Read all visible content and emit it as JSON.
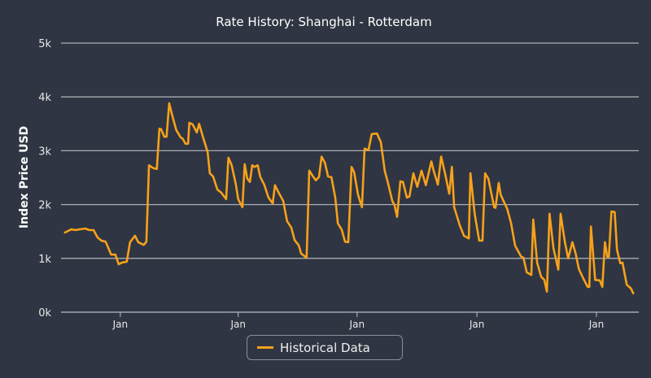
{
  "chart_data": {
    "type": "line",
    "title": "Rate History: Shanghai - Rotterdam",
    "xlabel": "",
    "ylabel": "Index Price USD",
    "x_unit": "days",
    "xlim": [
      -12,
      1762
    ],
    "ylim": [
      0,
      5000
    ],
    "yticks": [
      {
        "value": 0,
        "label": "0k"
      },
      {
        "value": 1000,
        "label": "1k"
      },
      {
        "value": 2000,
        "label": "2k"
      },
      {
        "value": 3000,
        "label": "3k"
      },
      {
        "value": 4000,
        "label": "4k"
      },
      {
        "value": 5000,
        "label": "5k"
      }
    ],
    "xticks": [
      {
        "value": 170,
        "label": "Jan"
      },
      {
        "value": 532,
        "label": "Jan"
      },
      {
        "value": 897,
        "label": "Jan"
      },
      {
        "value": 1265,
        "label": "Jan"
      },
      {
        "value": 1632,
        "label": "Jan"
      }
    ],
    "grid": true,
    "legend": "bottom-center",
    "colors": {
      "series": "#f7a11a",
      "grid": "#a9adb4",
      "background": "#2f3542"
    },
    "series": [
      {
        "name": "Historical Data",
        "points": [
          [
            0,
            1480
          ],
          [
            20,
            1540
          ],
          [
            32,
            1525
          ],
          [
            62,
            1555
          ],
          [
            75,
            1525
          ],
          [
            88,
            1525
          ],
          [
            100,
            1390
          ],
          [
            112,
            1330
          ],
          [
            125,
            1310
          ],
          [
            142,
            1070
          ],
          [
            155,
            1070
          ],
          [
            165,
            890
          ],
          [
            175,
            920
          ],
          [
            190,
            940
          ],
          [
            200,
            1300
          ],
          [
            215,
            1420
          ],
          [
            225,
            1300
          ],
          [
            242,
            1250
          ],
          [
            250,
            1310
          ],
          [
            258,
            2730
          ],
          [
            270,
            2680
          ],
          [
            282,
            2660
          ],
          [
            290,
            3410
          ],
          [
            295,
            3400
          ],
          [
            305,
            3260
          ],
          [
            312,
            3260
          ],
          [
            320,
            3880
          ],
          [
            330,
            3640
          ],
          [
            342,
            3380
          ],
          [
            355,
            3250
          ],
          [
            362,
            3220
          ],
          [
            370,
            3130
          ],
          [
            378,
            3130
          ],
          [
            382,
            3520
          ],
          [
            392,
            3490
          ],
          [
            405,
            3340
          ],
          [
            412,
            3500
          ],
          [
            425,
            3230
          ],
          [
            438,
            2980
          ],
          [
            445,
            2580
          ],
          [
            455,
            2520
          ],
          [
            468,
            2280
          ],
          [
            480,
            2220
          ],
          [
            495,
            2100
          ],
          [
            502,
            2870
          ],
          [
            512,
            2730
          ],
          [
            525,
            2370
          ],
          [
            532,
            2100
          ],
          [
            545,
            1950
          ],
          [
            552,
            2750
          ],
          [
            560,
            2480
          ],
          [
            568,
            2420
          ],
          [
            575,
            2730
          ],
          [
            582,
            2700
          ],
          [
            592,
            2730
          ],
          [
            600,
            2510
          ],
          [
            612,
            2370
          ],
          [
            625,
            2130
          ],
          [
            638,
            2020
          ],
          [
            645,
            2360
          ],
          [
            658,
            2200
          ],
          [
            670,
            2070
          ],
          [
            682,
            1690
          ],
          [
            695,
            1570
          ],
          [
            705,
            1340
          ],
          [
            718,
            1240
          ],
          [
            725,
            1090
          ],
          [
            742,
            1010
          ],
          [
            750,
            2630
          ],
          [
            762,
            2520
          ],
          [
            770,
            2450
          ],
          [
            780,
            2510
          ],
          [
            788,
            2890
          ],
          [
            798,
            2780
          ],
          [
            808,
            2520
          ],
          [
            818,
            2510
          ],
          [
            830,
            2130
          ],
          [
            838,
            1650
          ],
          [
            850,
            1530
          ],
          [
            860,
            1310
          ],
          [
            870,
            1300
          ],
          [
            880,
            2700
          ],
          [
            888,
            2600
          ],
          [
            900,
            2180
          ],
          [
            912,
            1950
          ],
          [
            920,
            3040
          ],
          [
            932,
            3010
          ],
          [
            942,
            3310
          ],
          [
            958,
            3320
          ],
          [
            970,
            3160
          ],
          [
            982,
            2630
          ],
          [
            992,
            2400
          ],
          [
            1005,
            2070
          ],
          [
            1012,
            1990
          ],
          [
            1020,
            1770
          ],
          [
            1030,
            2430
          ],
          [
            1038,
            2420
          ],
          [
            1050,
            2130
          ],
          [
            1058,
            2150
          ],
          [
            1070,
            2580
          ],
          [
            1082,
            2330
          ],
          [
            1095,
            2630
          ],
          [
            1108,
            2360
          ],
          [
            1125,
            2800
          ],
          [
            1132,
            2630
          ],
          [
            1145,
            2370
          ],
          [
            1155,
            2890
          ],
          [
            1168,
            2550
          ],
          [
            1180,
            2200
          ],
          [
            1188,
            2700
          ],
          [
            1195,
            1950
          ],
          [
            1212,
            1620
          ],
          [
            1225,
            1420
          ],
          [
            1240,
            1370
          ],
          [
            1245,
            2580
          ],
          [
            1258,
            1830
          ],
          [
            1272,
            1330
          ],
          [
            1282,
            1330
          ],
          [
            1290,
            2580
          ],
          [
            1300,
            2480
          ],
          [
            1318,
            1950
          ],
          [
            1322,
            1940
          ],
          [
            1332,
            2400
          ],
          [
            1338,
            2180
          ],
          [
            1358,
            1920
          ],
          [
            1370,
            1650
          ],
          [
            1382,
            1240
          ],
          [
            1400,
            1040
          ],
          [
            1408,
            1010
          ],
          [
            1418,
            740
          ],
          [
            1432,
            690
          ],
          [
            1438,
            1720
          ],
          [
            1450,
            920
          ],
          [
            1462,
            660
          ],
          [
            1472,
            600
          ],
          [
            1480,
            380
          ],
          [
            1488,
            1830
          ],
          [
            1500,
            1190
          ],
          [
            1515,
            790
          ],
          [
            1522,
            1830
          ],
          [
            1535,
            1310
          ],
          [
            1545,
            1000
          ],
          [
            1558,
            1300
          ],
          [
            1568,
            1090
          ],
          [
            1578,
            800
          ],
          [
            1592,
            620
          ],
          [
            1605,
            470
          ],
          [
            1610,
            470
          ],
          [
            1615,
            1590
          ],
          [
            1628,
            600
          ],
          [
            1642,
            590
          ],
          [
            1650,
            470
          ],
          [
            1658,
            1300
          ],
          [
            1665,
            1030
          ],
          [
            1670,
            1030
          ],
          [
            1678,
            1870
          ],
          [
            1688,
            1860
          ],
          [
            1695,
            1160
          ],
          [
            1705,
            910
          ],
          [
            1712,
            920
          ],
          [
            1725,
            510
          ],
          [
            1738,
            440
          ],
          [
            1745,
            350
          ]
        ]
      }
    ]
  }
}
